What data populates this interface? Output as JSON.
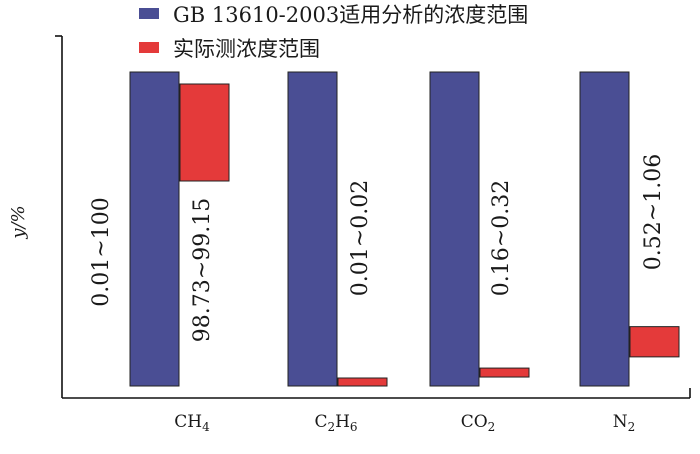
{
  "chart_data": {
    "type": "bar",
    "categories": [
      "CH4",
      "C2H6",
      "CO2",
      "N2"
    ],
    "category_labels": [
      {
        "main": "CH",
        "sub": "4"
      },
      {
        "main": "C",
        "sub": "2",
        "main2": "H",
        "sub2": "6"
      },
      {
        "main": "CO",
        "sub": "2"
      },
      {
        "main": "N",
        "sub": "2"
      }
    ],
    "series": [
      {
        "name": "GB 13610-2003适用分析的浓度范围",
        "color": "#4a4e94",
        "ranges": [
          [
            0.01,
            100
          ],
          [
            0.01,
            100
          ],
          [
            0.01,
            100
          ],
          [
            0.01,
            100
          ]
        ],
        "labels": [
          "0.01~100",
          "",
          "",
          ""
        ]
      },
      {
        "name": "实际测浓度范围",
        "color": "#e43a3a",
        "ranges": [
          [
            98.73,
            99.15
          ],
          [
            0.01,
            0.02
          ],
          [
            0.16,
            0.32
          ],
          [
            0.52,
            1.06
          ]
        ],
        "labels": [
          "98.73~99.15",
          "0.01~0.02",
          "0.16~0.32",
          "0.52~1.06"
        ]
      }
    ],
    "ylabel": "y/%",
    "axis_break": true,
    "legend_position": "top"
  }
}
